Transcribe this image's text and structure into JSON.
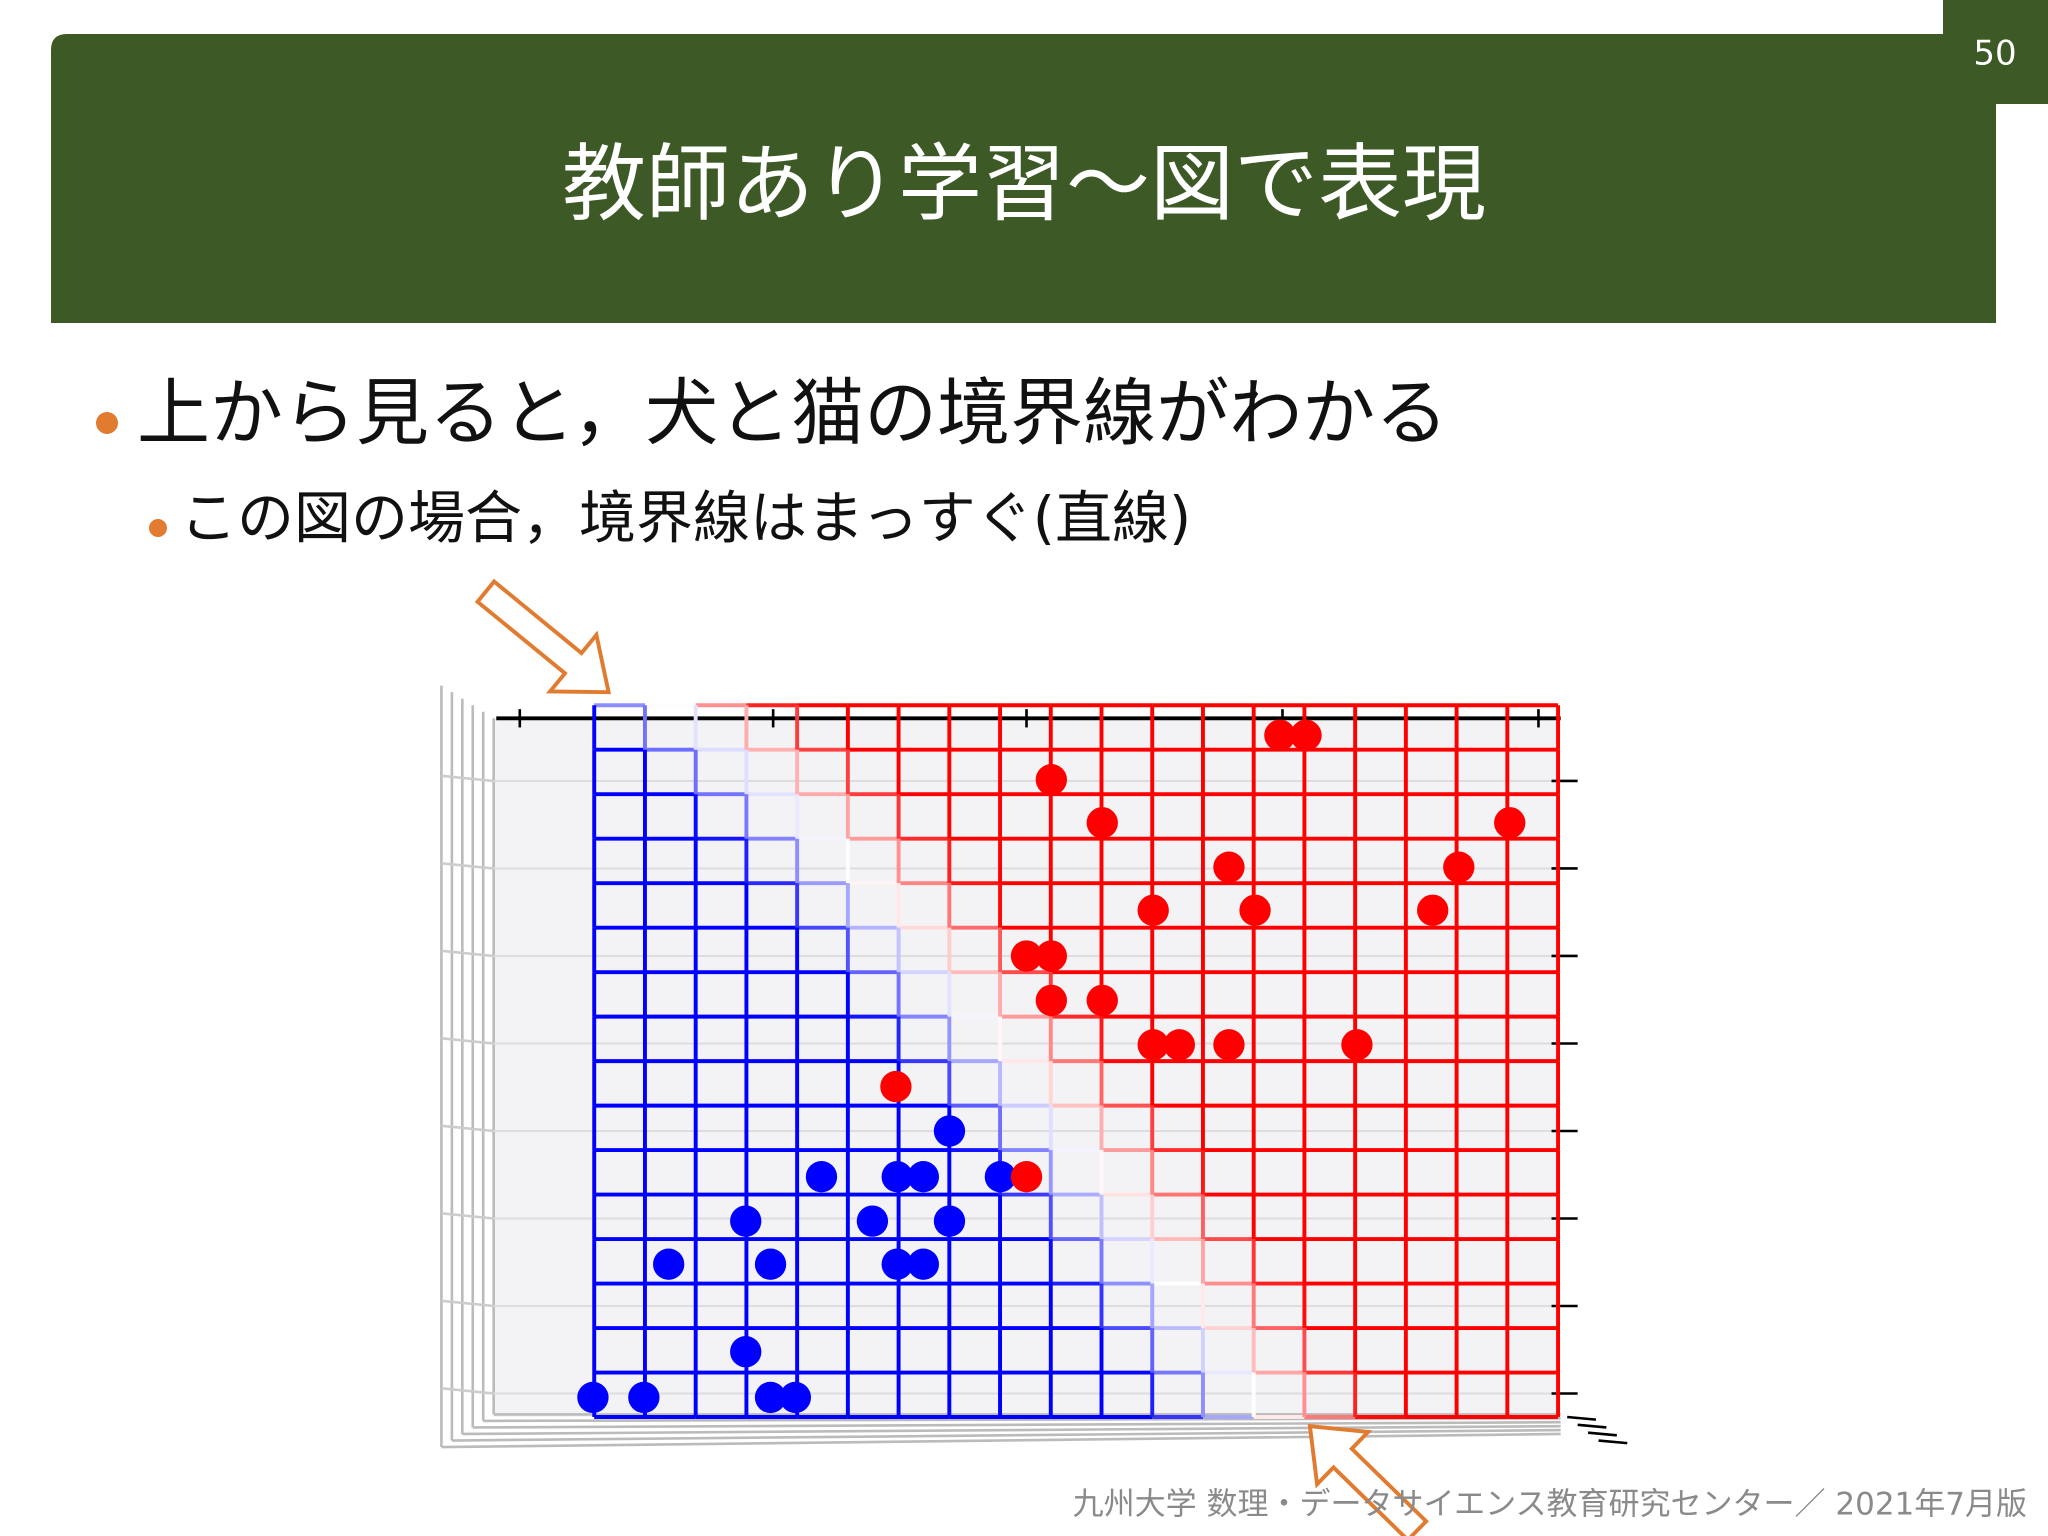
{
  "page_number": "50",
  "header": {
    "title": "教師あり学習～図で表現"
  },
  "bullets": [
    {
      "text": "上から見ると，犬と猫の境界線がわかる",
      "sub": [
        "この図の場合，境界線はまっすぐ(直線)"
      ]
    }
  ],
  "footer": "九州大学 数理・データサイエンス教育研究センター／ 2021年7月版"
}
